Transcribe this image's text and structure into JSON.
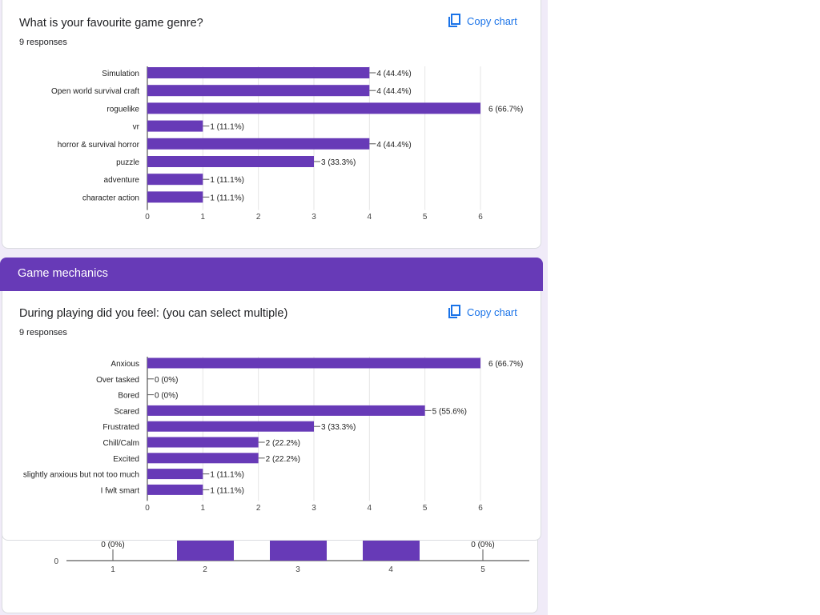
{
  "colors": {
    "bar": "#673ab7",
    "accent": "#1a73e8",
    "header_bg": "#673ab7",
    "page_bg": "#f0ebf8"
  },
  "question1": {
    "title": "What is your favourite game genre?",
    "responses": "9 responses",
    "copy_label": "Copy chart",
    "copy_icon": "copy-icon"
  },
  "section": {
    "title": "Game mechanics"
  },
  "question2": {
    "title": "During playing did you feel: (you can select multiple)",
    "responses": "9 responses",
    "copy_label": "Copy chart",
    "copy_icon": "copy-icon"
  },
  "chart_data": [
    {
      "type": "bar",
      "orientation": "horizontal",
      "categories": [
        "Simulation",
        "Open world survival craft",
        "roguelike",
        "vr",
        "horror & survival horror",
        "puzzle",
        "adventure",
        "character action"
      ],
      "values": [
        4,
        4,
        6,
        1,
        4,
        3,
        1,
        1
      ],
      "labels": [
        "4 (44.4%)",
        "4 (44.4%)",
        "6 (66.7%)",
        "1 (11.1%)",
        "4 (44.4%)",
        "3 (33.3%)",
        "1 (11.1%)",
        "1 (11.1%)"
      ],
      "xlim": [
        0,
        6
      ],
      "ticks": [
        "0",
        "1",
        "2",
        "3",
        "4",
        "5",
        "6"
      ],
      "grid": true
    },
    {
      "type": "bar",
      "orientation": "horizontal",
      "categories": [
        "Anxious",
        "Over tasked",
        "Bored",
        "Scared",
        "Frustrated",
        "Chill/Calm",
        "Excited",
        "slightly anxious but not too much",
        "I fwlt smart"
      ],
      "values": [
        6,
        0,
        0,
        5,
        3,
        2,
        2,
        1,
        1
      ],
      "labels": [
        "6 (66.7%)",
        "0 (0%)",
        "0 (0%)",
        "5 (55.6%)",
        "3 (33.3%)",
        "2 (22.2%)",
        "2 (22.2%)",
        "1 (11.1%)",
        "1 (11.1%)"
      ],
      "xlim": [
        0,
        6
      ],
      "ticks": [
        "0",
        "1",
        "2",
        "3",
        "4",
        "5",
        "6"
      ],
      "grid": true
    },
    {
      "type": "bar",
      "orientation": "vertical",
      "partial": true,
      "categories": [
        "1",
        "2",
        "3",
        "4",
        "5"
      ],
      "labels": [
        "0 (0%)",
        "",
        "",
        "",
        "0 (0%)"
      ],
      "visible_y_tick": "0"
    }
  ]
}
